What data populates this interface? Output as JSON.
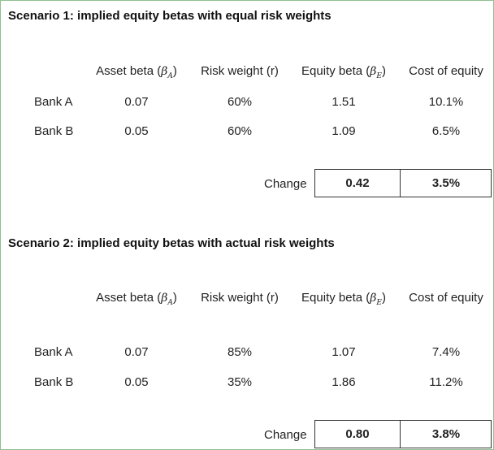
{
  "scenario1": {
    "title": "Scenario 1: implied equity betas with equal risk weights",
    "headers": {
      "asset_beta": "Asset beta",
      "asset_beta_symbol": "β",
      "asset_beta_sub": "A",
      "risk_weight": "Risk weight (r)",
      "equity_beta": "Equity beta",
      "equity_beta_symbol": "β",
      "equity_beta_sub": "E",
      "cost_of_equity": "Cost of equity"
    },
    "rows": [
      {
        "label": "Bank A",
        "asset_beta": "0.07",
        "risk_weight": "60%",
        "equity_beta": "1.51",
        "cost_of_equity": "10.1%"
      },
      {
        "label": "Bank B",
        "asset_beta": "0.05",
        "risk_weight": "60%",
        "equity_beta": "1.09",
        "cost_of_equity": "6.5%"
      }
    ],
    "change": {
      "label": "Change",
      "equity_beta": "0.42",
      "cost_of_equity": "3.5%"
    }
  },
  "scenario2": {
    "title": "Scenario 2: implied equity betas with actual risk weights",
    "headers": {
      "asset_beta": "Asset beta",
      "asset_beta_symbol": "β",
      "asset_beta_sub": "A",
      "risk_weight": "Risk weight (r)",
      "equity_beta": "Equity beta",
      "equity_beta_symbol": "β",
      "equity_beta_sub": "E",
      "cost_of_equity": "Cost of equity"
    },
    "rows": [
      {
        "label": "Bank A",
        "asset_beta": "0.07",
        "risk_weight": "85%",
        "equity_beta": "1.07",
        "cost_of_equity": "7.4%"
      },
      {
        "label": "Bank B",
        "asset_beta": "0.05",
        "risk_weight": "35%",
        "equity_beta": "1.86",
        "cost_of_equity": "11.2%"
      }
    ],
    "change": {
      "label": "Change",
      "equity_beta": "0.80",
      "cost_of_equity": "3.8%"
    }
  }
}
